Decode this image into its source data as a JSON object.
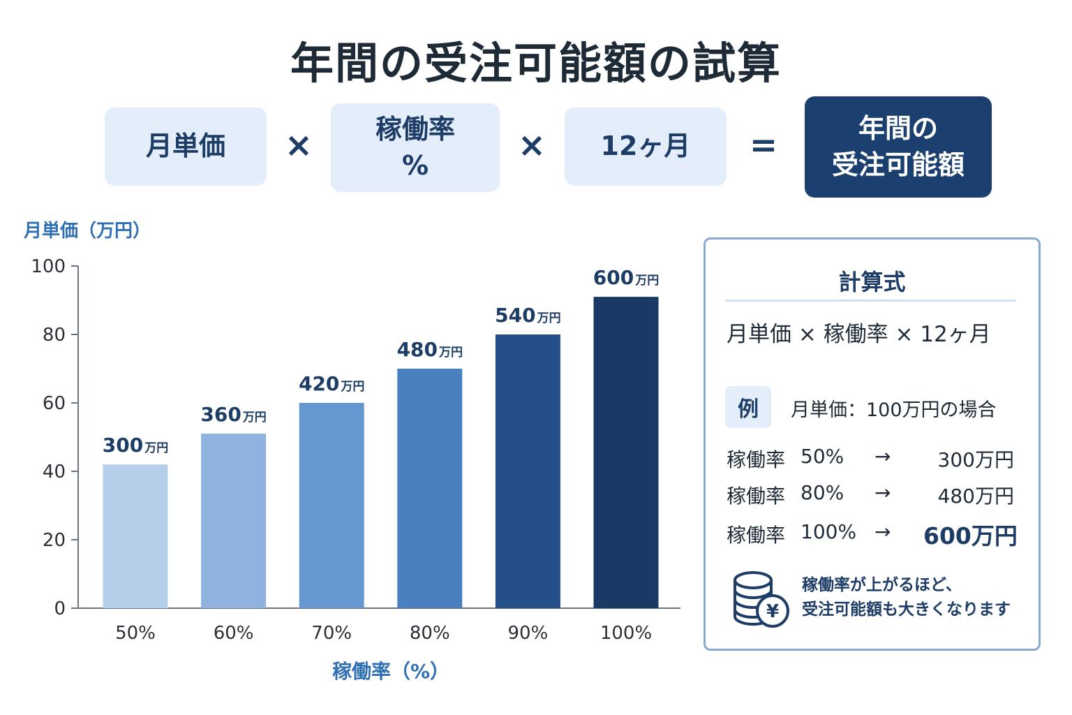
{
  "title": "年間の受注可能額の試算",
  "formula_header": {
    "items": [
      "月単価",
      "稼働率\n%",
      "12ヶ月"
    ],
    "operators": [
      "×",
      "×",
      "="
    ],
    "result": "年間の\n受注可能額"
  },
  "colors": {
    "bars": [
      "#b5cfea",
      "#8fb2de",
      "#6598d0",
      "#4a80bf",
      "#254f88",
      "#183a64"
    ],
    "accent": "#1d3c66",
    "axis_title": "#2f6fb3"
  },
  "chart_data": {
    "type": "bar",
    "y_unit_label": "月単価（万円）",
    "xlabel": "稼働率（%）",
    "categories": [
      "50%",
      "60%",
      "70%",
      "80%",
      "90%",
      "100%"
    ],
    "values": [
      42,
      51,
      60,
      70,
      80,
      91
    ],
    "data_labels": [
      "300",
      "360",
      "420",
      "480",
      "540",
      "600"
    ],
    "data_label_unit": "万円",
    "ylim": [
      0,
      100
    ],
    "yticks": [
      0,
      20,
      40,
      60,
      80,
      100
    ],
    "grid": false,
    "legend": "none"
  },
  "panel": {
    "title": "計算式",
    "formula": "月単価 × 稼働率 × 12ヶ月",
    "example_badge": "例",
    "example_text": "月単価：100万円の場合",
    "rows": [
      {
        "label": "稼働率",
        "pct": "50%",
        "arrow": "→",
        "result": "300万円"
      },
      {
        "label": "稼働率",
        "pct": "80%",
        "arrow": "→",
        "result": "480万円"
      },
      {
        "label": "稼働率",
        "pct": "100%",
        "arrow": "→",
        "result": "600万円"
      }
    ],
    "note_icon": "coins-yen-icon",
    "note_yen": "¥",
    "note_line1": "稼働率が上がるほど、",
    "note_line2": "受注可能額も大きくなります"
  }
}
